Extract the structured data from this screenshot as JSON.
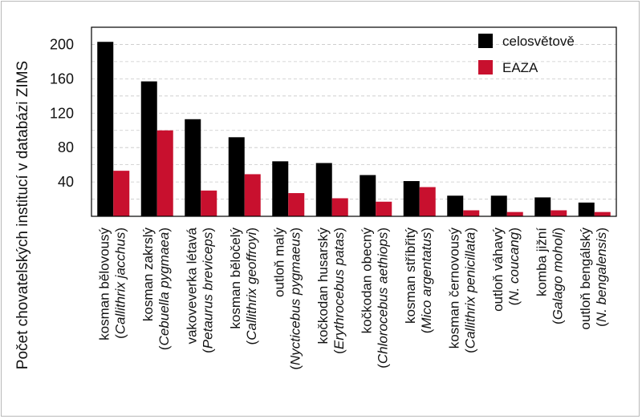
{
  "chart_data": {
    "type": "bar",
    "ylabel": "Počet chovatelských institucí v databázi ZIMS",
    "ylim": [
      0,
      220
    ],
    "yticks": [
      40,
      80,
      120,
      160,
      200
    ],
    "grid": true,
    "legend_position": "top-right",
    "categories": [
      {
        "common": "kosman bělovousý",
        "latin": "Callithrix jacchus"
      },
      {
        "common": "kosman zakrslý",
        "latin": "Cebuella pygmaea"
      },
      {
        "common": "vakoveverka létavá",
        "latin": "Petaurus breviceps"
      },
      {
        "common": "kosman běločelý",
        "latin": "Callithrix geoffroyi"
      },
      {
        "common": "outloň malý",
        "latin": "Nycticebus pygmaeus"
      },
      {
        "common": "kočkodan husarský",
        "latin": "Erythrocebus patas"
      },
      {
        "common": "kočkodan obecný",
        "latin": "Chlorocebus aethiops"
      },
      {
        "common": "kosman stříbřitý",
        "latin": "Mico argentatus"
      },
      {
        "common": "kosman černovousý",
        "latin": "Callithrix penicillata"
      },
      {
        "common": "outloň váhavý",
        "latin": "N. coucang"
      },
      {
        "common": "komba jižní",
        "latin": "Galago moholi"
      },
      {
        "common": "outloň bengálský",
        "latin": "N. bengalensis"
      }
    ],
    "series": [
      {
        "name": "celosvětově",
        "color": "#000000",
        "values": [
          203,
          157,
          113,
          92,
          64,
          62,
          48,
          41,
          24,
          24,
          22,
          16
        ]
      },
      {
        "name": "EAZA",
        "color": "#c8102e",
        "values": [
          53,
          100,
          30,
          49,
          27,
          21,
          17,
          34,
          7,
          5,
          7,
          5
        ]
      }
    ]
  }
}
